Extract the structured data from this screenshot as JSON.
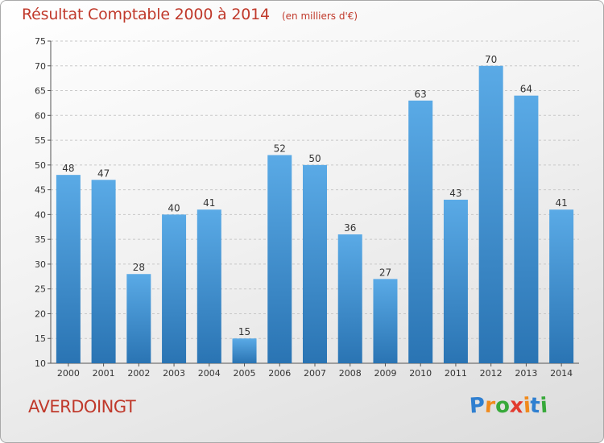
{
  "chart_data": {
    "type": "bar",
    "title": "Résultat Comptable 2000 à 2014",
    "subtitle": "(en milliers d'€)",
    "categories": [
      "2000",
      "2001",
      "2002",
      "2003",
      "2004",
      "2005",
      "2006",
      "2007",
      "2008",
      "2009",
      "2010",
      "2011",
      "2012",
      "2013",
      "2014"
    ],
    "values": [
      48,
      47,
      28,
      40,
      41,
      15,
      52,
      50,
      36,
      27,
      63,
      43,
      70,
      64,
      41
    ],
    "ylim": [
      10,
      75
    ],
    "yticks": [
      10,
      15,
      20,
      25,
      30,
      35,
      40,
      45,
      50,
      55,
      60,
      65,
      70,
      75
    ],
    "grid": true,
    "colors": {
      "bar_top": "#5aaae6",
      "bar_bottom": "#2a74b3",
      "text": "#333333",
      "title": "#c0392b"
    }
  },
  "location": "AVERDOINGT",
  "logo": {
    "letters": [
      "P",
      "r",
      "o",
      "x",
      "i",
      "t",
      "i"
    ],
    "colors": [
      "#2f7fd0",
      "#f08a1c",
      "#37a93a",
      "#e23a2e",
      "#f08a1c",
      "#2f7fd0",
      "#37a93a"
    ]
  }
}
